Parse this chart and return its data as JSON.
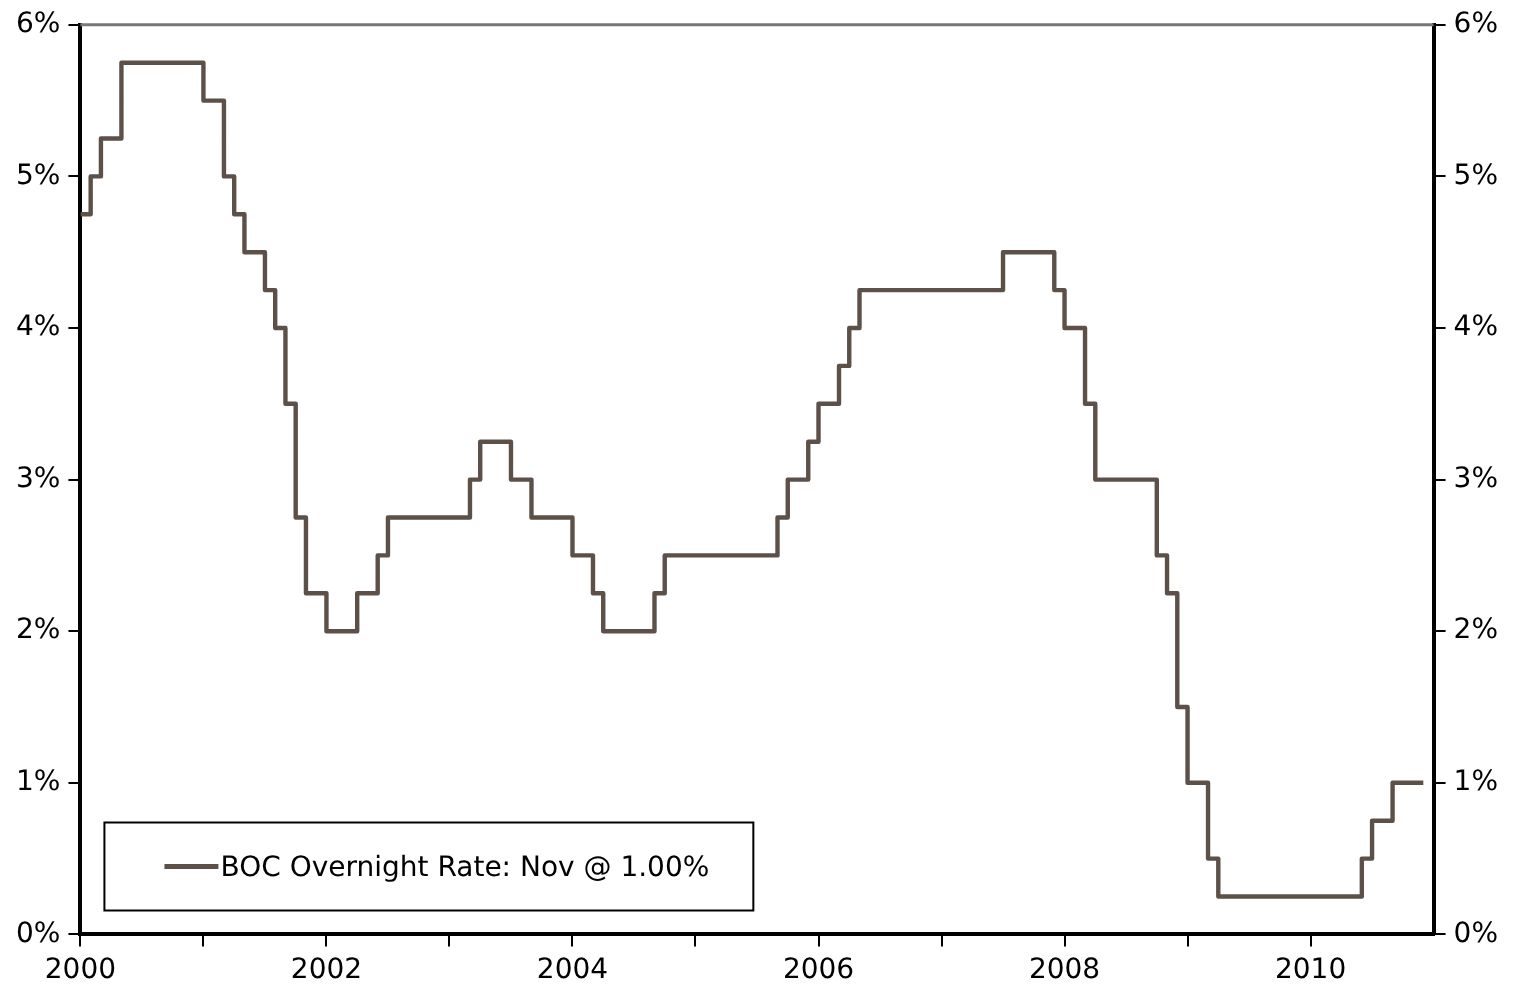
{
  "chart_data": {
    "type": "step",
    "x": [
      "2000-01",
      "2000-02",
      "2000-03",
      "2000-05",
      "2001-01",
      "2001-03",
      "2001-04",
      "2001-05",
      "2001-07",
      "2001-08",
      "2001-09",
      "2001-10",
      "2001-11",
      "2002-01",
      "2002-04",
      "2002-06",
      "2002-07",
      "2003-03",
      "2003-04",
      "2003-07",
      "2003-09",
      "2004-01",
      "2004-03",
      "2004-04",
      "2004-09",
      "2004-10",
      "2005-09",
      "2005-10",
      "2005-12",
      "2006-01",
      "2006-03",
      "2006-04",
      "2006-05",
      "2007-07",
      "2007-12",
      "2008-01",
      "2008-03",
      "2008-04",
      "2008-10",
      "2008-11",
      "2008-12",
      "2009-01",
      "2009-03",
      "2009-04",
      "2010-06",
      "2010-07",
      "2010-09",
      "2010-12"
    ],
    "series": [
      {
        "name": "BOC Overnight Rate: Nov @ 1.00%",
        "color": "#5c5048",
        "values": [
          4.75,
          5.0,
          5.25,
          5.75,
          5.5,
          5.0,
          4.75,
          4.5,
          4.25,
          4.0,
          3.5,
          2.75,
          2.25,
          2.0,
          2.25,
          2.5,
          2.75,
          3.0,
          3.25,
          3.0,
          2.75,
          2.5,
          2.25,
          2.0,
          2.25,
          2.5,
          2.75,
          3.0,
          3.25,
          3.5,
          3.75,
          4.0,
          4.25,
          4.5,
          4.25,
          4.0,
          3.5,
          3.0,
          2.5,
          2.25,
          1.5,
          1.0,
          0.5,
          0.25,
          0.5,
          0.75,
          1.0,
          1.0
        ]
      }
    ],
    "xlim": [
      "2000-01",
      "2011-01"
    ],
    "xticks": [
      {
        "value": "2000",
        "label": "2000"
      },
      {
        "value": "2001",
        "label": null
      },
      {
        "value": "2002",
        "label": "2002"
      },
      {
        "value": "2003",
        "label": null
      },
      {
        "value": "2004",
        "label": "2004"
      },
      {
        "value": "2005",
        "label": null
      },
      {
        "value": "2006",
        "label": "2006"
      },
      {
        "value": "2007",
        "label": null
      },
      {
        "value": "2008",
        "label": "2008"
      },
      {
        "value": "2009",
        "label": null
      },
      {
        "value": "2010",
        "label": "2010"
      }
    ],
    "ylim": [
      0,
      6
    ],
    "yticks": [
      {
        "value": 0,
        "label": "0%"
      },
      {
        "value": 1,
        "label": "1%"
      },
      {
        "value": 2,
        "label": "2%"
      },
      {
        "value": 3,
        "label": "3%"
      },
      {
        "value": 4,
        "label": "4%"
      },
      {
        "value": 5,
        "label": "5%"
      },
      {
        "value": 6,
        "label": "6%"
      }
    ],
    "y2lim": [
      0,
      6
    ],
    "y2ticks": [
      {
        "value": 0,
        "label": "0%"
      },
      {
        "value": 1,
        "label": "1%"
      },
      {
        "value": 2,
        "label": "2%"
      },
      {
        "value": 3,
        "label": "3%"
      },
      {
        "value": 4,
        "label": "4%"
      },
      {
        "value": 5,
        "label": "5%"
      },
      {
        "value": 6,
        "label": "6%"
      }
    ],
    "legend": "bottom left",
    "grid": false
  }
}
